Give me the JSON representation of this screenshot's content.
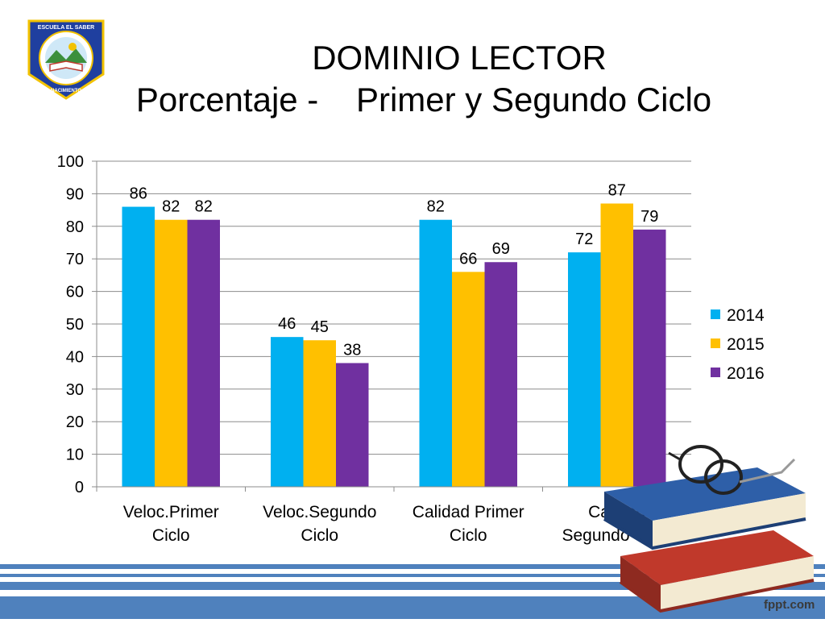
{
  "slide": {
    "title_line1": "DOMINIO LECTOR",
    "title_line2": "Porcentaje -    Primer y Segundo Ciclo",
    "logo": {
      "icon": "school-crest-icon",
      "text_top": "ESCUELA EL SABER",
      "text_bottom": "NACIMIENTO"
    },
    "watermark": "fppt.com",
    "decoration": "books-and-glasses-icon"
  },
  "chart_data": {
    "type": "bar",
    "categories": [
      [
        "Veloc.Primer",
        "Ciclo"
      ],
      [
        "Veloc.Segundo",
        "Ciclo"
      ],
      [
        "Calidad Primer",
        "Ciclo"
      ],
      [
        "Calidad",
        "Segundo Ciclo"
      ]
    ],
    "series": [
      {
        "name": "2014",
        "values": [
          86,
          46,
          82,
          72
        ],
        "color": "#00B0F0"
      },
      {
        "name": "2015",
        "values": [
          82,
          45,
          66,
          87
        ],
        "color": "#FFC000"
      },
      {
        "name": "2016",
        "values": [
          82,
          38,
          69,
          79
        ],
        "color": "#7030A0"
      }
    ],
    "ylim": [
      0,
      100
    ],
    "yticks": [
      "0",
      "10",
      "20",
      "30",
      "40",
      "50",
      "60",
      "70",
      "80",
      "90",
      "100"
    ],
    "grid": true,
    "legend": "right",
    "data_labels": true
  }
}
